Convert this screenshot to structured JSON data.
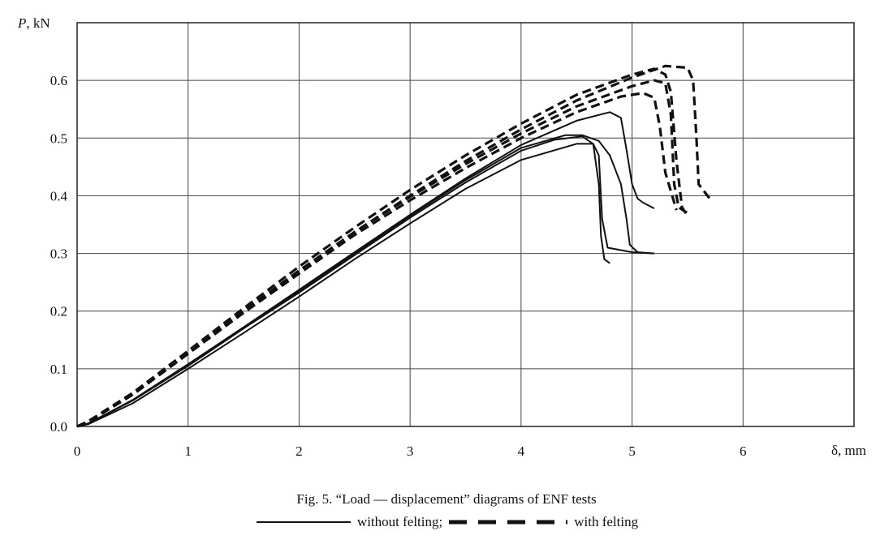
{
  "chart_data": {
    "type": "line",
    "title": "",
    "ylabel_italic": "P",
    "ylabel_rest": ", kN",
    "xlabel": "δ, mm",
    "xlim": [
      0,
      7
    ],
    "ylim": [
      0,
      0.7
    ],
    "x_ticks": [
      "0",
      "1",
      "2",
      "3",
      "4",
      "5",
      "6"
    ],
    "y_ticks": [
      "0.0",
      "0.1",
      "0.2",
      "0.3",
      "0.4",
      "0.5",
      "0.6"
    ],
    "grid": true,
    "series": [
      {
        "group": "without felting",
        "style": "solid",
        "x": [
          0,
          0.1,
          0.5,
          1,
          1.5,
          2,
          2.5,
          3,
          3.5,
          4,
          4.3,
          4.55,
          4.65,
          4.7,
          4.72,
          4.75,
          4.8
        ],
        "y": [
          0,
          0.005,
          0.045,
          0.105,
          0.17,
          0.232,
          0.297,
          0.362,
          0.423,
          0.478,
          0.497,
          0.503,
          0.49,
          0.42,
          0.33,
          0.29,
          0.283
        ]
      },
      {
        "group": "without felting",
        "style": "solid",
        "x": [
          0,
          0.1,
          0.5,
          1,
          1.5,
          2,
          2.5,
          3,
          3.5,
          4,
          4.5,
          4.65,
          4.7,
          4.73,
          4.78,
          5.0,
          5.2
        ],
        "y": [
          0,
          0.004,
          0.04,
          0.1,
          0.162,
          0.225,
          0.29,
          0.352,
          0.412,
          0.462,
          0.49,
          0.49,
          0.47,
          0.36,
          0.31,
          0.302,
          0.3
        ]
      },
      {
        "group": "without felting",
        "style": "solid",
        "x": [
          0,
          0.1,
          0.5,
          1,
          1.5,
          2,
          2.5,
          3,
          3.5,
          4,
          4.5,
          4.8,
          4.9,
          4.95,
          5.0,
          5.05,
          5.1,
          5.2
        ],
        "y": [
          0,
          0.005,
          0.046,
          0.108,
          0.172,
          0.237,
          0.302,
          0.367,
          0.43,
          0.488,
          0.53,
          0.545,
          0.535,
          0.48,
          0.42,
          0.395,
          0.388,
          0.378
        ]
      },
      {
        "group": "without felting",
        "style": "solid",
        "x": [
          0,
          0.1,
          0.5,
          1,
          1.5,
          2,
          2.5,
          3,
          3.5,
          4,
          4.4,
          4.55,
          4.7,
          4.8,
          4.9,
          4.95,
          4.98,
          5.05,
          5.2
        ],
        "y": [
          0,
          0.005,
          0.045,
          0.106,
          0.17,
          0.235,
          0.3,
          0.365,
          0.427,
          0.483,
          0.505,
          0.505,
          0.495,
          0.47,
          0.42,
          0.36,
          0.315,
          0.302,
          0.3
        ]
      },
      {
        "group": "with felting",
        "style": "dashed",
        "x": [
          0,
          0.1,
          0.5,
          1,
          1.5,
          2,
          2.5,
          3,
          3.5,
          4,
          4.5,
          4.9,
          5.1,
          5.2,
          5.25,
          5.3,
          5.4
        ],
        "y": [
          0,
          0.008,
          0.055,
          0.126,
          0.197,
          0.265,
          0.332,
          0.392,
          0.448,
          0.5,
          0.545,
          0.572,
          0.578,
          0.57,
          0.52,
          0.44,
          0.375
        ]
      },
      {
        "group": "with felting",
        "style": "dashed",
        "x": [
          0,
          0.1,
          0.5,
          1,
          1.5,
          2,
          2.5,
          3,
          3.5,
          4,
          4.5,
          5.0,
          5.2,
          5.3,
          5.35,
          5.38,
          5.42,
          5.5
        ],
        "y": [
          0,
          0.008,
          0.056,
          0.128,
          0.2,
          0.27,
          0.337,
          0.398,
          0.455,
          0.508,
          0.555,
          0.59,
          0.6,
          0.595,
          0.54,
          0.42,
          0.38,
          0.37
        ]
      },
      {
        "group": "with felting",
        "style": "dashed",
        "x": [
          0,
          0.1,
          0.5,
          1,
          1.5,
          2,
          2.5,
          3,
          3.5,
          4,
          4.5,
          5.0,
          5.2,
          5.3,
          5.35,
          5.4,
          5.45,
          5.5
        ],
        "y": [
          0,
          0.009,
          0.058,
          0.131,
          0.205,
          0.277,
          0.345,
          0.41,
          0.47,
          0.525,
          0.575,
          0.61,
          0.62,
          0.61,
          0.58,
          0.46,
          0.38,
          0.365
        ]
      },
      {
        "group": "with felting",
        "style": "dashed",
        "x": [
          0,
          0.1,
          0.5,
          1,
          1.5,
          2,
          2.5,
          3,
          3.5,
          4,
          4.5,
          5.0,
          5.3,
          5.5,
          5.55,
          5.58,
          5.6,
          5.7
        ],
        "y": [
          0,
          0.008,
          0.056,
          0.128,
          0.2,
          0.27,
          0.337,
          0.4,
          0.46,
          0.515,
          0.565,
          0.605,
          0.625,
          0.622,
          0.6,
          0.5,
          0.42,
          0.395
        ]
      }
    ]
  },
  "caption": {
    "line1": "Fig. 5. “Load — displacement” diagrams of ENF tests",
    "legend_without": "without felting;",
    "legend_with": "with felting"
  }
}
